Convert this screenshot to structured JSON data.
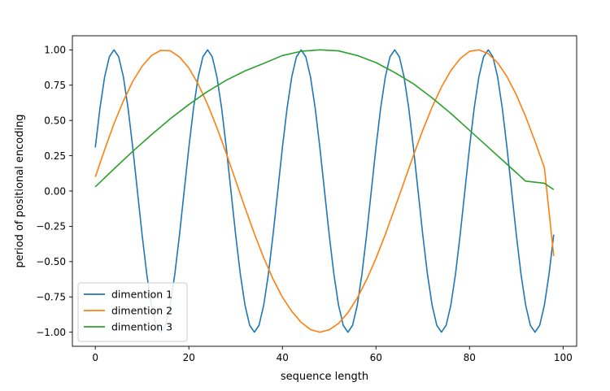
{
  "chart_data": {
    "type": "line",
    "xlabel": "sequence length",
    "ylabel": "period of positional encoding",
    "xlim": [
      -4.9,
      102.9
    ],
    "ylim": [
      -1.1,
      1.1
    ],
    "xticks": [
      0,
      20,
      40,
      60,
      80,
      100
    ],
    "xtick_labels": [
      "0",
      "20",
      "40",
      "60",
      "80",
      "100"
    ],
    "yticks": [
      -1.0,
      -0.75,
      -0.5,
      -0.25,
      0.0,
      0.25,
      0.5,
      0.75,
      1.0
    ],
    "ytick_labels": [
      "−1.00",
      "−0.75",
      "−0.50",
      "−0.25",
      "0.00",
      "0.25",
      "0.50",
      "0.75",
      "1.00"
    ],
    "grid": false,
    "legend_position": "lower-left",
    "series": [
      {
        "name": "dimention 1",
        "color": "#1f77b4",
        "x": [
          0,
          1,
          2,
          3,
          4,
          5,
          6,
          7,
          8,
          9,
          10,
          11,
          12,
          13,
          14,
          15,
          16,
          17,
          18,
          19,
          20,
          21,
          22,
          23,
          24,
          25,
          26,
          27,
          28,
          29,
          30,
          31,
          32,
          33,
          34,
          35,
          36,
          37,
          38,
          39,
          40,
          41,
          42,
          43,
          44,
          45,
          46,
          47,
          48,
          49,
          50,
          51,
          52,
          53,
          54,
          55,
          56,
          57,
          58,
          59,
          60,
          61,
          62,
          63,
          64,
          65,
          66,
          67,
          68,
          69,
          70,
          71,
          72,
          73,
          74,
          75,
          76,
          77,
          78,
          79,
          80,
          81,
          82,
          83,
          84,
          85,
          86,
          87,
          88,
          89,
          90,
          91,
          92,
          93,
          94,
          95,
          96,
          97,
          98
        ],
        "y": [
          0.309,
          0.588,
          0.809,
          0.951,
          1.0,
          0.951,
          0.809,
          0.588,
          0.309,
          0.0,
          -0.309,
          -0.588,
          -0.809,
          -0.951,
          -1.0,
          -0.951,
          -0.809,
          -0.588,
          -0.309,
          0.0,
          0.309,
          0.588,
          0.809,
          0.951,
          1.0,
          0.951,
          0.809,
          0.588,
          0.309,
          0.0,
          -0.309,
          -0.588,
          -0.809,
          -0.951,
          -1.0,
          -0.951,
          -0.809,
          -0.588,
          -0.309,
          0.0,
          0.309,
          0.588,
          0.809,
          0.951,
          1.0,
          0.951,
          0.809,
          0.588,
          0.309,
          0.0,
          -0.309,
          -0.588,
          -0.809,
          -0.951,
          -1.0,
          -0.951,
          -0.809,
          -0.588,
          -0.309,
          0.0,
          0.309,
          0.588,
          0.809,
          0.951,
          1.0,
          0.951,
          0.809,
          0.588,
          0.309,
          0.0,
          -0.309,
          -0.588,
          -0.809,
          -0.951,
          -1.0,
          -0.951,
          -0.809,
          -0.588,
          -0.309,
          0.0,
          0.309,
          0.588,
          0.809,
          0.951,
          1.0,
          0.951,
          0.809,
          0.588,
          0.309,
          0.0,
          -0.309,
          -0.588,
          -0.809,
          -0.951,
          -1.0,
          -0.951,
          -0.809,
          -0.588,
          -0.309
        ]
      },
      {
        "name": "dimention 2",
        "color": "#ff7f0e",
        "x": [
          0,
          2,
          4,
          6,
          8,
          10,
          12,
          14,
          16,
          18,
          20,
          22,
          24,
          26,
          28,
          30,
          32,
          34,
          36,
          38,
          40,
          42,
          44,
          46,
          48,
          50,
          52,
          54,
          56,
          58,
          60,
          62,
          64,
          66,
          68,
          70,
          72,
          74,
          76,
          78,
          80,
          82,
          84,
          86,
          88,
          90,
          92,
          94,
          96,
          98
        ],
        "y": [
          0.1,
          0.293,
          0.478,
          0.638,
          0.776,
          0.884,
          0.96,
          0.997,
          0.994,
          0.95,
          0.872,
          0.757,
          0.614,
          0.448,
          0.267,
          0.075,
          -0.118,
          -0.302,
          -0.473,
          -0.624,
          -0.752,
          -0.852,
          -0.93,
          -0.981,
          -1.0,
          -0.983,
          -0.938,
          -0.862,
          -0.758,
          -0.628,
          -0.477,
          -0.307,
          -0.124,
          0.064,
          0.252,
          0.431,
          0.594,
          0.737,
          0.853,
          0.938,
          0.99,
          1.0,
          0.973,
          0.909,
          0.811,
          0.682,
          0.527,
          0.352,
          0.165,
          -0.46
        ]
      },
      {
        "name": "dimention 3",
        "color": "#2ca02c",
        "x": [
          0,
          4,
          8,
          12,
          16,
          20,
          24,
          28,
          32,
          36,
          40,
          44,
          48,
          52,
          56,
          60,
          64,
          68,
          72,
          76,
          80,
          84,
          88,
          92,
          96,
          98
        ],
        "y": [
          0.03,
          0.157,
          0.281,
          0.399,
          0.511,
          0.613,
          0.705,
          0.785,
          0.851,
          0.904,
          0.96,
          0.99,
          1.0,
          0.993,
          0.96,
          0.91,
          0.84,
          0.76,
          0.66,
          0.55,
          0.43,
          0.31,
          0.19,
          0.07,
          0.055,
          0.01
        ]
      }
    ]
  }
}
